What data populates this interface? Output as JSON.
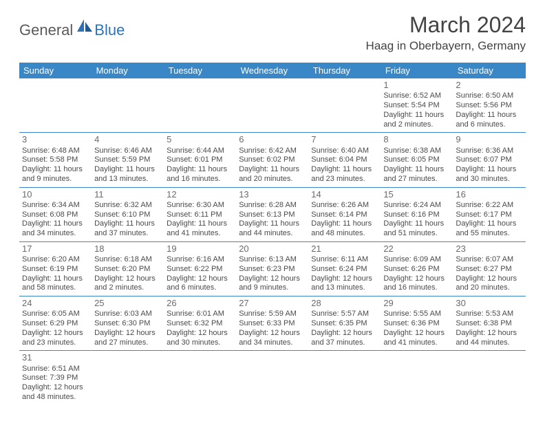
{
  "brand": {
    "general": "General",
    "blue": "Blue"
  },
  "title": "March 2024",
  "location": "Haag in Oberbayern, Germany",
  "dayHeaders": [
    "Sunday",
    "Monday",
    "Tuesday",
    "Wednesday",
    "Thursday",
    "Friday",
    "Saturday"
  ],
  "colors": {
    "headerBg": "#3a87c7",
    "headerText": "#ffffff",
    "titleText": "#434343",
    "cellText": "#4a4a4a",
    "brandBlue": "#2d73b5"
  },
  "weeks": [
    [
      null,
      null,
      null,
      null,
      null,
      {
        "d": "1",
        "sr": "Sunrise: 6:52 AM",
        "ss": "Sunset: 5:54 PM",
        "dl1": "Daylight: 11 hours",
        "dl2": "and 2 minutes."
      },
      {
        "d": "2",
        "sr": "Sunrise: 6:50 AM",
        "ss": "Sunset: 5:56 PM",
        "dl1": "Daylight: 11 hours",
        "dl2": "and 6 minutes."
      }
    ],
    [
      {
        "d": "3",
        "sr": "Sunrise: 6:48 AM",
        "ss": "Sunset: 5:58 PM",
        "dl1": "Daylight: 11 hours",
        "dl2": "and 9 minutes."
      },
      {
        "d": "4",
        "sr": "Sunrise: 6:46 AM",
        "ss": "Sunset: 5:59 PM",
        "dl1": "Daylight: 11 hours",
        "dl2": "and 13 minutes."
      },
      {
        "d": "5",
        "sr": "Sunrise: 6:44 AM",
        "ss": "Sunset: 6:01 PM",
        "dl1": "Daylight: 11 hours",
        "dl2": "and 16 minutes."
      },
      {
        "d": "6",
        "sr": "Sunrise: 6:42 AM",
        "ss": "Sunset: 6:02 PM",
        "dl1": "Daylight: 11 hours",
        "dl2": "and 20 minutes."
      },
      {
        "d": "7",
        "sr": "Sunrise: 6:40 AM",
        "ss": "Sunset: 6:04 PM",
        "dl1": "Daylight: 11 hours",
        "dl2": "and 23 minutes."
      },
      {
        "d": "8",
        "sr": "Sunrise: 6:38 AM",
        "ss": "Sunset: 6:05 PM",
        "dl1": "Daylight: 11 hours",
        "dl2": "and 27 minutes."
      },
      {
        "d": "9",
        "sr": "Sunrise: 6:36 AM",
        "ss": "Sunset: 6:07 PM",
        "dl1": "Daylight: 11 hours",
        "dl2": "and 30 minutes."
      }
    ],
    [
      {
        "d": "10",
        "sr": "Sunrise: 6:34 AM",
        "ss": "Sunset: 6:08 PM",
        "dl1": "Daylight: 11 hours",
        "dl2": "and 34 minutes."
      },
      {
        "d": "11",
        "sr": "Sunrise: 6:32 AM",
        "ss": "Sunset: 6:10 PM",
        "dl1": "Daylight: 11 hours",
        "dl2": "and 37 minutes."
      },
      {
        "d": "12",
        "sr": "Sunrise: 6:30 AM",
        "ss": "Sunset: 6:11 PM",
        "dl1": "Daylight: 11 hours",
        "dl2": "and 41 minutes."
      },
      {
        "d": "13",
        "sr": "Sunrise: 6:28 AM",
        "ss": "Sunset: 6:13 PM",
        "dl1": "Daylight: 11 hours",
        "dl2": "and 44 minutes."
      },
      {
        "d": "14",
        "sr": "Sunrise: 6:26 AM",
        "ss": "Sunset: 6:14 PM",
        "dl1": "Daylight: 11 hours",
        "dl2": "and 48 minutes."
      },
      {
        "d": "15",
        "sr": "Sunrise: 6:24 AM",
        "ss": "Sunset: 6:16 PM",
        "dl1": "Daylight: 11 hours",
        "dl2": "and 51 minutes."
      },
      {
        "d": "16",
        "sr": "Sunrise: 6:22 AM",
        "ss": "Sunset: 6:17 PM",
        "dl1": "Daylight: 11 hours",
        "dl2": "and 55 minutes."
      }
    ],
    [
      {
        "d": "17",
        "sr": "Sunrise: 6:20 AM",
        "ss": "Sunset: 6:19 PM",
        "dl1": "Daylight: 11 hours",
        "dl2": "and 58 minutes."
      },
      {
        "d": "18",
        "sr": "Sunrise: 6:18 AM",
        "ss": "Sunset: 6:20 PM",
        "dl1": "Daylight: 12 hours",
        "dl2": "and 2 minutes."
      },
      {
        "d": "19",
        "sr": "Sunrise: 6:16 AM",
        "ss": "Sunset: 6:22 PM",
        "dl1": "Daylight: 12 hours",
        "dl2": "and 6 minutes."
      },
      {
        "d": "20",
        "sr": "Sunrise: 6:13 AM",
        "ss": "Sunset: 6:23 PM",
        "dl1": "Daylight: 12 hours",
        "dl2": "and 9 minutes."
      },
      {
        "d": "21",
        "sr": "Sunrise: 6:11 AM",
        "ss": "Sunset: 6:24 PM",
        "dl1": "Daylight: 12 hours",
        "dl2": "and 13 minutes."
      },
      {
        "d": "22",
        "sr": "Sunrise: 6:09 AM",
        "ss": "Sunset: 6:26 PM",
        "dl1": "Daylight: 12 hours",
        "dl2": "and 16 minutes."
      },
      {
        "d": "23",
        "sr": "Sunrise: 6:07 AM",
        "ss": "Sunset: 6:27 PM",
        "dl1": "Daylight: 12 hours",
        "dl2": "and 20 minutes."
      }
    ],
    [
      {
        "d": "24",
        "sr": "Sunrise: 6:05 AM",
        "ss": "Sunset: 6:29 PM",
        "dl1": "Daylight: 12 hours",
        "dl2": "and 23 minutes."
      },
      {
        "d": "25",
        "sr": "Sunrise: 6:03 AM",
        "ss": "Sunset: 6:30 PM",
        "dl1": "Daylight: 12 hours",
        "dl2": "and 27 minutes."
      },
      {
        "d": "26",
        "sr": "Sunrise: 6:01 AM",
        "ss": "Sunset: 6:32 PM",
        "dl1": "Daylight: 12 hours",
        "dl2": "and 30 minutes."
      },
      {
        "d": "27",
        "sr": "Sunrise: 5:59 AM",
        "ss": "Sunset: 6:33 PM",
        "dl1": "Daylight: 12 hours",
        "dl2": "and 34 minutes."
      },
      {
        "d": "28",
        "sr": "Sunrise: 5:57 AM",
        "ss": "Sunset: 6:35 PM",
        "dl1": "Daylight: 12 hours",
        "dl2": "and 37 minutes."
      },
      {
        "d": "29",
        "sr": "Sunrise: 5:55 AM",
        "ss": "Sunset: 6:36 PM",
        "dl1": "Daylight: 12 hours",
        "dl2": "and 41 minutes."
      },
      {
        "d": "30",
        "sr": "Sunrise: 5:53 AM",
        "ss": "Sunset: 6:38 PM",
        "dl1": "Daylight: 12 hours",
        "dl2": "and 44 minutes."
      }
    ],
    [
      {
        "d": "31",
        "sr": "Sunrise: 6:51 AM",
        "ss": "Sunset: 7:39 PM",
        "dl1": "Daylight: 12 hours",
        "dl2": "and 48 minutes."
      },
      null,
      null,
      null,
      null,
      null,
      null
    ]
  ]
}
